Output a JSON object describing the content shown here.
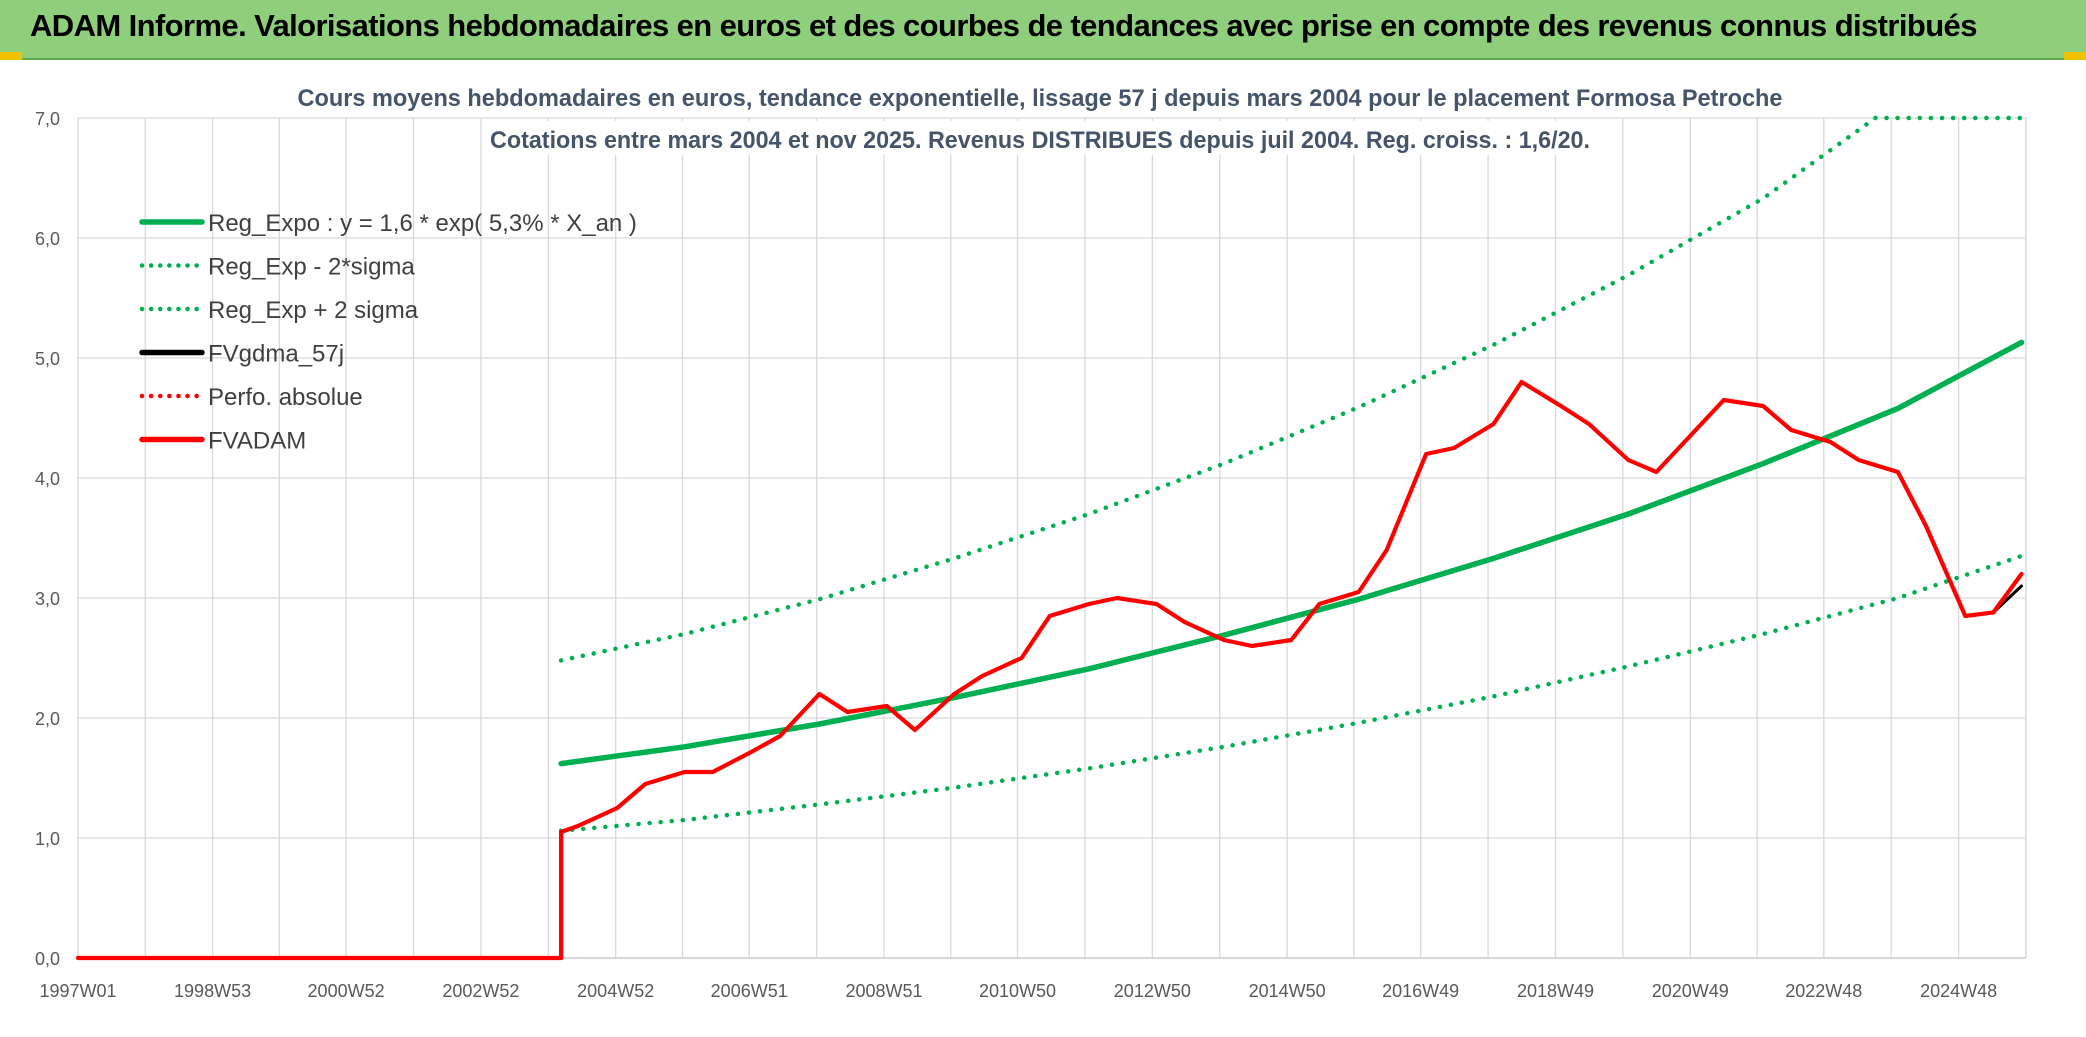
{
  "banner": {
    "title": "ADAM Informe. Valorisations hebdomadaires en euros et des courbes de tendances avec prise en compte des revenus connus distribués"
  },
  "colors": {
    "banner_bg": "#8fce7b",
    "grid": "#d9d9d9",
    "reg_green": "#00b050",
    "black_line": "#000000",
    "red_line": "#ff0000",
    "title_text": "#44546a"
  },
  "chart_data": {
    "type": "line",
    "title": "Cours moyens hebdomadaires en euros, tendance exponentielle, lissage 57 j depuis mars 2004 pour le placement Formosa Petroche",
    "subtitle": "Cotations entre mars 2004 et nov 2025. Revenus DISTRIBUES depuis juil 2004. Reg. croiss. : 1,6/20.",
    "x_axis": {
      "type": "date-weekly",
      "range": [
        "1997W01",
        "2025W48"
      ],
      "tick_labels": [
        "1997W01",
        "1998W53",
        "2000W52",
        "2002W52",
        "2004W52",
        "2006W51",
        "2008W51",
        "2010W50",
        "2012W50",
        "2014W50",
        "2016W49",
        "2018W49",
        "2020W49",
        "2022W48",
        "2024W48"
      ]
    },
    "y_axis": {
      "range": [
        0,
        7
      ],
      "tick_labels": [
        "0,0",
        "1,0",
        "2,0",
        "3,0",
        "4,0",
        "5,0",
        "6,0",
        "7,0"
      ]
    },
    "grid": true,
    "legend_position": "top-left",
    "legend": [
      {
        "label": "Reg_Expo : y = 1,6 * exp( 5,3% *  X_an )",
        "style": "solid",
        "color": "#00b050"
      },
      {
        "label": "Reg_Exp - 2*sigma",
        "style": "dotted",
        "color": "#00b050"
      },
      {
        "label": "Reg_Exp + 2 sigma",
        "style": "dotted",
        "color": "#00b050"
      },
      {
        "label": "FVgdma_57j",
        "style": "solid",
        "color": "#000000"
      },
      {
        "label": "Perfo. absolue",
        "style": "dotted",
        "color": "#ff0000"
      },
      {
        "label": "FVADAM",
        "style": "solid",
        "color": "#ff0000"
      }
    ],
    "series": [
      {
        "name": "Reg_Expo : y = 1,6 * exp( 5,3% *  X_an )",
        "x": [
          "2004-03",
          "2006-01",
          "2008-01",
          "2010-01",
          "2012-01",
          "2014-01",
          "2016-01",
          "2018-01",
          "2020-01",
          "2022-01",
          "2024-01",
          "2025-11"
        ],
        "y": [
          1.62,
          1.76,
          1.95,
          2.17,
          2.41,
          2.69,
          2.99,
          3.33,
          3.7,
          4.12,
          4.58,
          5.13
        ]
      },
      {
        "name": "Reg_Exp - 2*sigma",
        "x": [
          "2004-03",
          "2006-01",
          "2008-01",
          "2010-01",
          "2012-01",
          "2014-01",
          "2016-01",
          "2018-01",
          "2020-01",
          "2022-01",
          "2024-01",
          "2025-11"
        ],
        "y": [
          1.06,
          1.15,
          1.28,
          1.42,
          1.58,
          1.76,
          1.96,
          2.18,
          2.43,
          2.7,
          3.0,
          3.35
        ]
      },
      {
        "name": "Reg_Exp + 2 sigma",
        "x": [
          "2004-03",
          "2006-01",
          "2008-01",
          "2010-01",
          "2012-01",
          "2014-01",
          "2016-01",
          "2018-01",
          "2020-01",
          "2022-01",
          "2023-09",
          "2025-11"
        ],
        "y": [
          2.48,
          2.7,
          2.99,
          3.33,
          3.7,
          4.12,
          4.59,
          5.11,
          5.69,
          6.33,
          7.0,
          7.0
        ]
      },
      {
        "name": "FVgdma_57j",
        "x": [
          "2004-03",
          "2004-06",
          "2005-01",
          "2005-06",
          "2006-01",
          "2006-06",
          "2007-01",
          "2007-06",
          "2008-01",
          "2008-06",
          "2009-01",
          "2009-06",
          "2010-01",
          "2010-06",
          "2011-01",
          "2011-06",
          "2012-01",
          "2012-06",
          "2013-01",
          "2013-06",
          "2014-01",
          "2014-06",
          "2015-01",
          "2015-06",
          "2016-01",
          "2016-06",
          "2017-01",
          "2017-06",
          "2018-01",
          "2018-06",
          "2019-01",
          "2019-06",
          "2020-01",
          "2020-06",
          "2021-01",
          "2021-06",
          "2022-01",
          "2022-06",
          "2023-01",
          "2023-06",
          "2024-01",
          "2024-06",
          "2025-01",
          "2025-06",
          "2025-11"
        ],
        "y": [
          1.05,
          1.1,
          1.25,
          1.45,
          1.55,
          1.55,
          1.72,
          1.85,
          2.2,
          2.05,
          2.1,
          1.9,
          2.2,
          2.35,
          2.5,
          2.85,
          2.95,
          3.0,
          2.95,
          2.8,
          2.65,
          2.6,
          2.65,
          2.95,
          3.05,
          3.4,
          4.2,
          4.25,
          4.45,
          4.8,
          4.6,
          4.45,
          4.15,
          4.05,
          4.4,
          4.65,
          4.6,
          4.4,
          4.3,
          4.15,
          4.05,
          3.6,
          2.85,
          2.88,
          3.1
        ]
      },
      {
        "name": "FVADAM",
        "x": [
          "1997-01",
          "2004-03",
          "2004-03",
          "2004-06",
          "2005-01",
          "2005-06",
          "2006-01",
          "2006-06",
          "2007-01",
          "2007-06",
          "2008-01",
          "2008-06",
          "2009-01",
          "2009-06",
          "2010-01",
          "2010-06",
          "2011-01",
          "2011-06",
          "2012-01",
          "2012-06",
          "2013-01",
          "2013-06",
          "2014-01",
          "2014-06",
          "2015-01",
          "2015-06",
          "2016-01",
          "2016-06",
          "2017-01",
          "2017-06",
          "2018-01",
          "2018-06",
          "2019-01",
          "2019-06",
          "2020-01",
          "2020-06",
          "2021-01",
          "2021-06",
          "2022-01",
          "2022-06",
          "2023-01",
          "2023-06",
          "2024-01",
          "2024-06",
          "2025-01",
          "2025-06",
          "2025-11"
        ],
        "y": [
          0.0,
          0.0,
          1.05,
          1.1,
          1.25,
          1.45,
          1.55,
          1.55,
          1.72,
          1.85,
          2.2,
          2.05,
          2.1,
          1.9,
          2.2,
          2.35,
          2.5,
          2.85,
          2.95,
          3.0,
          2.95,
          2.8,
          2.65,
          2.6,
          2.65,
          2.95,
          3.05,
          3.4,
          4.2,
          4.25,
          4.45,
          4.8,
          4.6,
          4.45,
          4.15,
          4.05,
          4.4,
          4.65,
          4.6,
          4.4,
          4.3,
          4.15,
          4.05,
          3.6,
          2.85,
          2.88,
          3.2
        ]
      }
    ]
  }
}
